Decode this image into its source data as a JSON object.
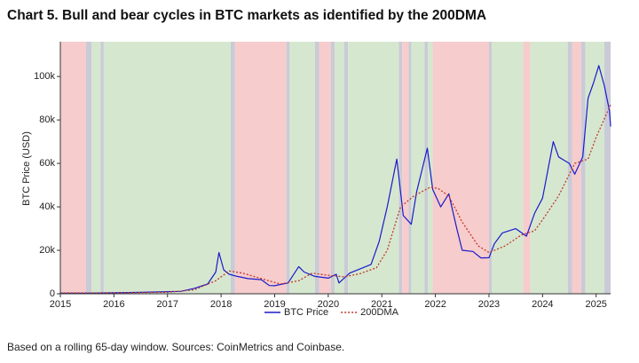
{
  "chart_data": {
    "type": "line",
    "title": "Chart 5. Bull and bear cycles in BTC markets as identified by the 200DMA",
    "ylabel": "BTC Price (USD)",
    "footnote": "Based on a rolling 65-day window. Sources: CoinMetrics and Coinbase.",
    "xlim": [
      2015,
      2025.27
    ],
    "xticks": [
      2015,
      2016,
      2017,
      2018,
      2019,
      2020,
      2021,
      2022,
      2023,
      2024,
      2025
    ],
    "ylim": [
      0,
      116000
    ],
    "yticks": [
      0,
      {
        "value": 20000,
        "label": "20k"
      },
      {
        "value": 40000,
        "label": "40k"
      },
      {
        "value": 60000,
        "label": "60k"
      },
      {
        "value": 80000,
        "label": "80k"
      },
      {
        "value": 100000,
        "label": "100k"
      }
    ],
    "regions": [
      {
        "x0": 2015.0,
        "x1": 2015.48,
        "color": "#f6cccc"
      },
      {
        "x0": 2015.48,
        "x1": 2015.58,
        "color": "#c9cbd6"
      },
      {
        "x0": 2015.58,
        "x1": 2015.75,
        "color": "#d6e7cf"
      },
      {
        "x0": 2015.75,
        "x1": 2015.81,
        "color": "#c9cbd6"
      },
      {
        "x0": 2015.81,
        "x1": 2018.18,
        "color": "#d6e7cf"
      },
      {
        "x0": 2018.18,
        "x1": 2018.26,
        "color": "#c9cbd6"
      },
      {
        "x0": 2018.26,
        "x1": 2019.22,
        "color": "#f6cccc"
      },
      {
        "x0": 2019.22,
        "x1": 2019.28,
        "color": "#c9cbd6"
      },
      {
        "x0": 2019.28,
        "x1": 2019.75,
        "color": "#d6e7cf"
      },
      {
        "x0": 2019.75,
        "x1": 2019.83,
        "color": "#c9cbd6"
      },
      {
        "x0": 2019.83,
        "x1": 2020.05,
        "color": "#f6cccc"
      },
      {
        "x0": 2020.05,
        "x1": 2020.12,
        "color": "#c9cbd6"
      },
      {
        "x0": 2020.12,
        "x1": 2020.3,
        "color": "#d6e7cf"
      },
      {
        "x0": 2020.3,
        "x1": 2020.37,
        "color": "#c9cbd6"
      },
      {
        "x0": 2020.37,
        "x1": 2021.32,
        "color": "#d6e7cf"
      },
      {
        "x0": 2021.32,
        "x1": 2021.38,
        "color": "#c9cbd6"
      },
      {
        "x0": 2021.38,
        "x1": 2021.5,
        "color": "#f6cccc"
      },
      {
        "x0": 2021.5,
        "x1": 2021.55,
        "color": "#c9cbd6"
      },
      {
        "x0": 2021.55,
        "x1": 2021.8,
        "color": "#d6e7cf"
      },
      {
        "x0": 2021.8,
        "x1": 2021.86,
        "color": "#c9cbd6"
      },
      {
        "x0": 2021.86,
        "x1": 2021.95,
        "color": "#d6e7cf"
      },
      {
        "x0": 2021.95,
        "x1": 2023.0,
        "color": "#f6cccc"
      },
      {
        "x0": 2023.0,
        "x1": 2023.05,
        "color": "#c9cbd6"
      },
      {
        "x0": 2023.05,
        "x1": 2023.64,
        "color": "#d6e7cf"
      },
      {
        "x0": 2023.64,
        "x1": 2023.77,
        "color": "#f6cccc"
      },
      {
        "x0": 2023.77,
        "x1": 2024.47,
        "color": "#d6e7cf"
      },
      {
        "x0": 2024.47,
        "x1": 2024.55,
        "color": "#c9cbd6"
      },
      {
        "x0": 2024.55,
        "x1": 2024.72,
        "color": "#f6cccc"
      },
      {
        "x0": 2024.72,
        "x1": 2024.8,
        "color": "#c9cbd6"
      },
      {
        "x0": 2024.8,
        "x1": 2025.15,
        "color": "#d6e7cf"
      },
      {
        "x0": 2025.15,
        "x1": 2025.27,
        "color": "#c9cbd6"
      }
    ],
    "series": [
      {
        "name": "BTC Price",
        "color": "#1a1acc",
        "dash": false,
        "x": [
          2015.0,
          2015.5,
          2016.0,
          2016.5,
          2017.0,
          2017.25,
          2017.5,
          2017.75,
          2017.9,
          2017.96,
          2018.05,
          2018.15,
          2018.3,
          2018.5,
          2018.75,
          2018.9,
          2019.0,
          2019.25,
          2019.45,
          2019.55,
          2019.75,
          2020.0,
          2020.15,
          2020.2,
          2020.4,
          2020.6,
          2020.8,
          2020.95,
          2021.1,
          2021.28,
          2021.4,
          2021.55,
          2021.65,
          2021.85,
          2021.95,
          2022.1,
          2022.25,
          2022.4,
          2022.5,
          2022.7,
          2022.85,
          2023.0,
          2023.1,
          2023.25,
          2023.5,
          2023.7,
          2023.85,
          2024.0,
          2024.2,
          2024.3,
          2024.5,
          2024.6,
          2024.75,
          2024.85,
          2024.95,
          2025.05,
          2025.15,
          2025.25,
          2025.27
        ],
        "values": [
          300,
          250,
          430,
          650,
          1000,
          1100,
          2500,
          4500,
          10000,
          19000,
          11000,
          9000,
          8000,
          7000,
          6500,
          3800,
          3700,
          5000,
          12500,
          10000,
          8000,
          7200,
          9000,
          5000,
          9500,
          11500,
          13500,
          24000,
          40000,
          62000,
          36000,
          32000,
          47000,
          67000,
          48000,
          40000,
          46000,
          30000,
          20000,
          19500,
          16500,
          16600,
          23000,
          28000,
          30000,
          26500,
          37000,
          44000,
          70000,
          63000,
          60000,
          55000,
          63000,
          90000,
          97000,
          105000,
          96000,
          84000,
          77000
        ]
      },
      {
        "name": "200DMA",
        "color": "#c0392b",
        "dash": true,
        "x": [
          2015.0,
          2016.0,
          2017.0,
          2017.5,
          2017.9,
          2018.15,
          2018.4,
          2018.75,
          2019.1,
          2019.45,
          2019.7,
          2020.0,
          2020.3,
          2020.6,
          2020.9,
          2021.1,
          2021.35,
          2021.6,
          2021.9,
          2022.05,
          2022.25,
          2022.5,
          2022.8,
          2023.0,
          2023.3,
          2023.6,
          2023.85,
          2024.0,
          2024.3,
          2024.6,
          2024.85,
          2025.0,
          2025.27
        ],
        "values": [
          400,
          400,
          700,
          1800,
          6000,
          10500,
          9500,
          7000,
          4500,
          6000,
          9500,
          8500,
          7800,
          9300,
          12000,
          20000,
          40000,
          45000,
          49000,
          48500,
          45000,
          33000,
          22000,
          19000,
          22000,
          27000,
          29000,
          34000,
          45000,
          60000,
          62000,
          72000,
          87000
        ]
      }
    ]
  }
}
